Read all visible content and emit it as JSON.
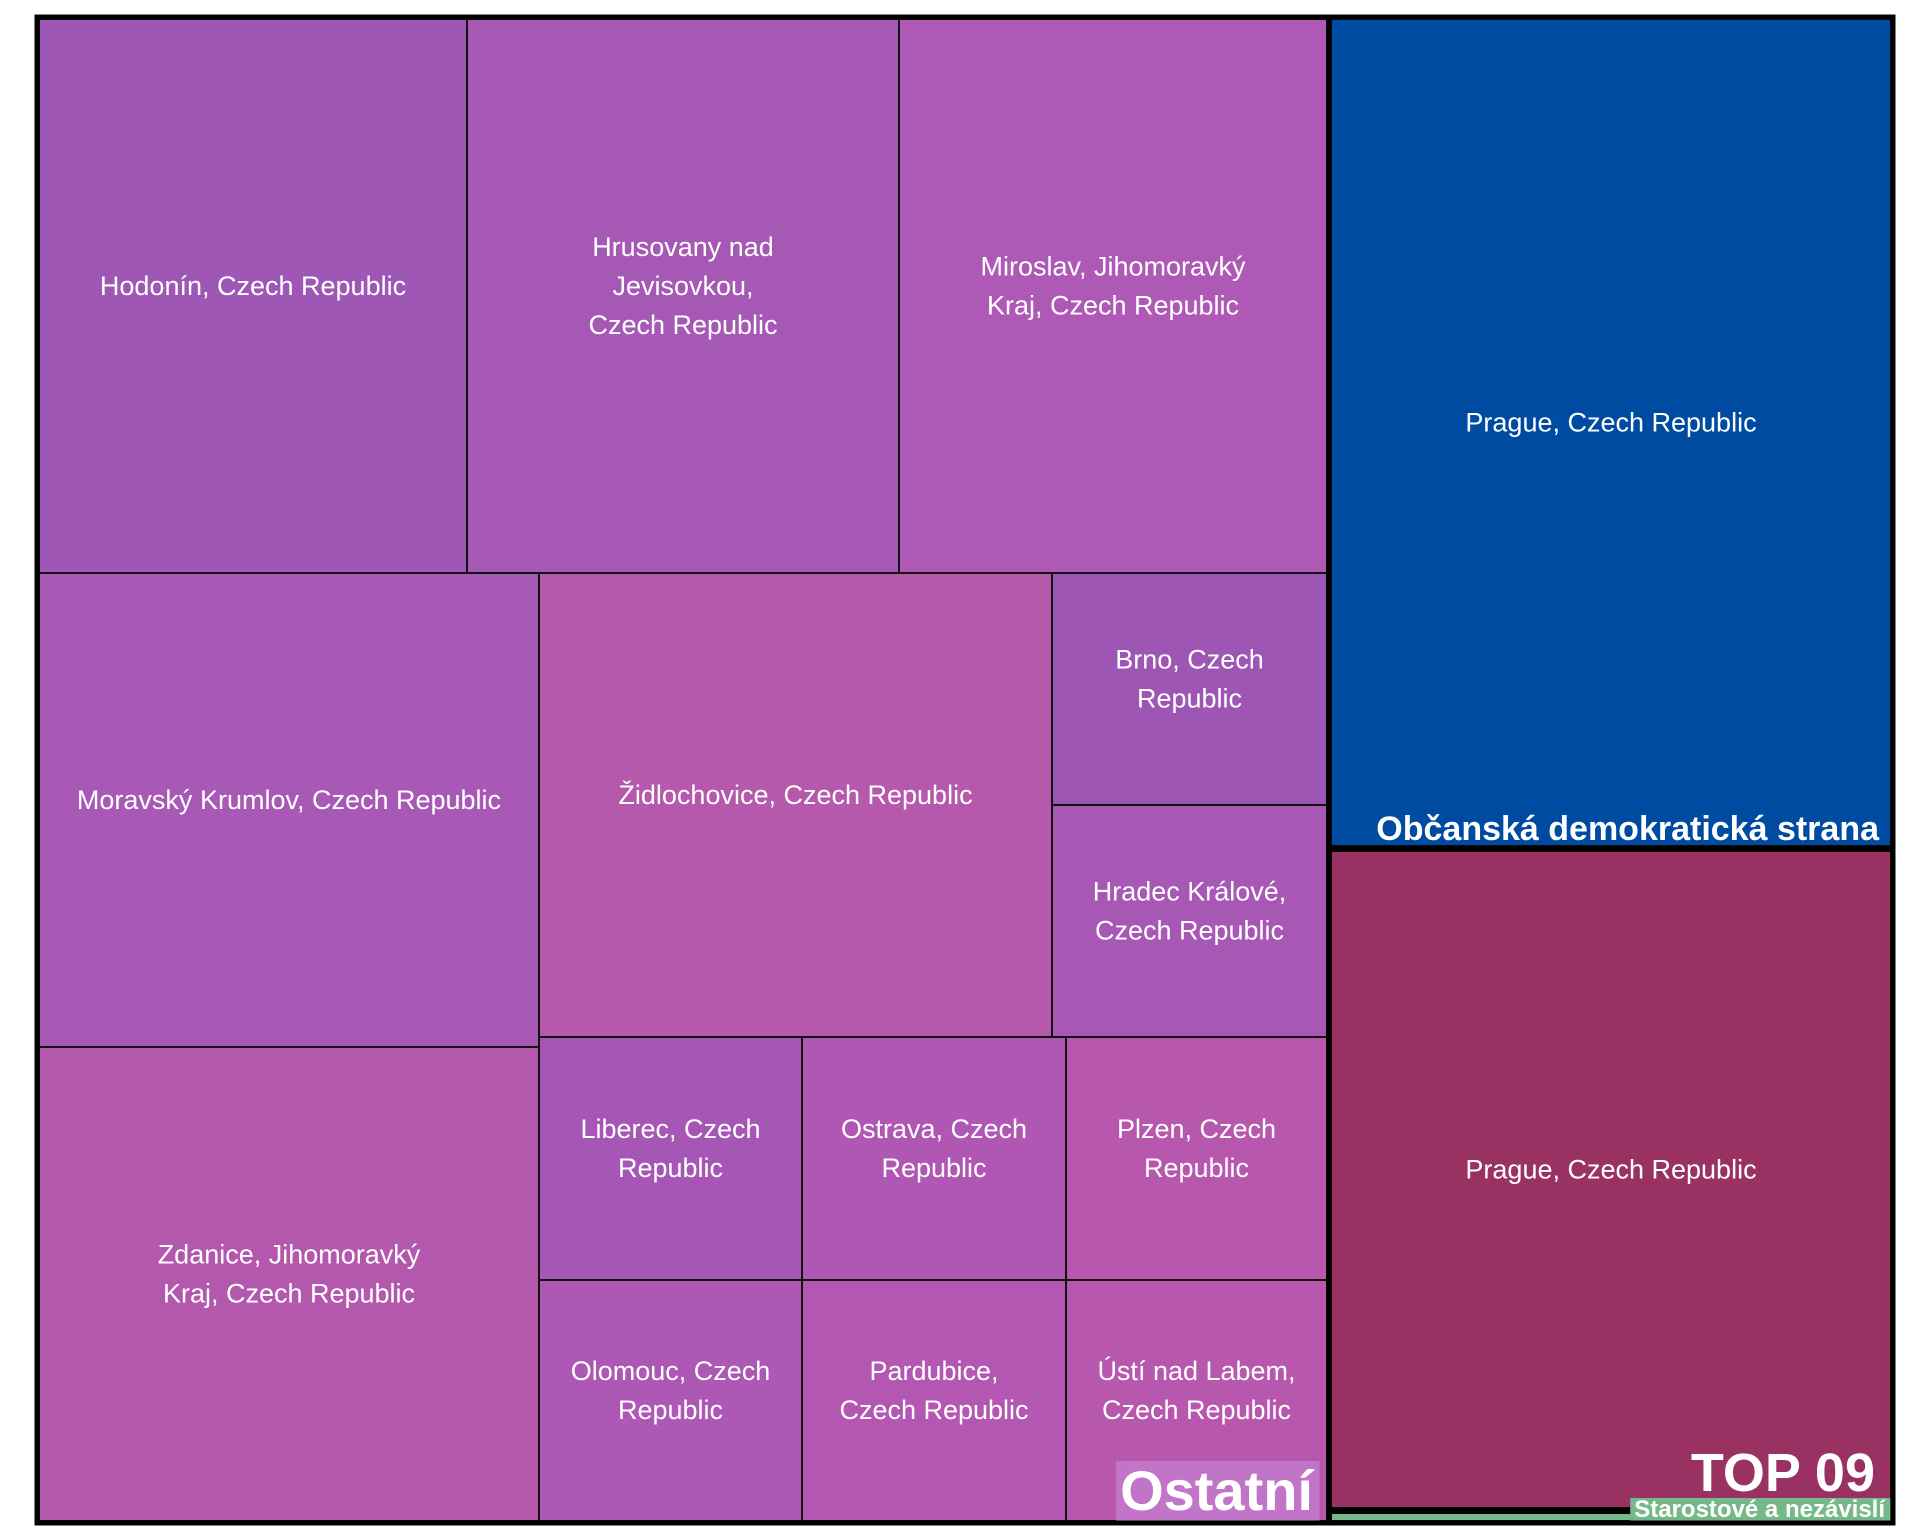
{
  "chart_data": {
    "type": "treemap",
    "groups": [
      {
        "name": "Ostatní",
        "leaves": [
          {
            "label": [
              "Hodonín, Czech Republic"
            ],
            "color": "#9f57b5"
          },
          {
            "label": [
              "Hrusovany nad",
              "Jevisovkou,",
              "Czech Republic"
            ],
            "color": "#a658b5"
          },
          {
            "label": [
              "Miroslav, Jihomoravký",
              "Kraj, Czech Republic"
            ],
            "color": "#ad59b5"
          },
          {
            "label": [
              "Moravský Krumlov, Czech Republic"
            ],
            "color": "#a858b5"
          },
          {
            "label": [
              "Židlochovice, Czech Republic"
            ],
            "color": "#b658ab"
          },
          {
            "label": [
              "Brno, Czech",
              "Republic"
            ],
            "color": "#9d56b3"
          },
          {
            "label": [
              "Hradec Králové,",
              "Czech Republic"
            ],
            "color": "#a758b5"
          },
          {
            "label": [
              "Zdanice, Jihomoravký",
              "Kraj, Czech Republic"
            ],
            "color": "#b458ad"
          },
          {
            "label": [
              "Liberec, Czech",
              "Republic"
            ],
            "color": "#a657b5"
          },
          {
            "label": [
              "Ostrava, Czech",
              "Republic"
            ],
            "color": "#b057b4"
          },
          {
            "label": [
              "Plzen, Czech",
              "Republic"
            ],
            "color": "#b757ae"
          },
          {
            "label": [
              "Olomouc, Czech",
              "Republic"
            ],
            "color": "#ad58b5"
          },
          {
            "label": [
              "Pardubice,",
              "Czech Republic"
            ],
            "color": "#b457b2"
          },
          {
            "label": [
              "Ústí nad Labem,",
              "Czech Republic"
            ],
            "color": "#b857ae"
          }
        ]
      },
      {
        "name": "Občanská demokratická strana",
        "leaves": [
          {
            "label": [
              "Prague, Czech Republic"
            ],
            "color": "#004ba2"
          }
        ]
      },
      {
        "name": "TOP 09",
        "leaves": [
          {
            "label": [
              "Prague, Czech Republic"
            ],
            "color": "#993263"
          }
        ]
      },
      {
        "name": "Starostové a nezávislí",
        "leaves": [
          {
            "label": [],
            "color": "#75b88a"
          }
        ]
      }
    ]
  }
}
